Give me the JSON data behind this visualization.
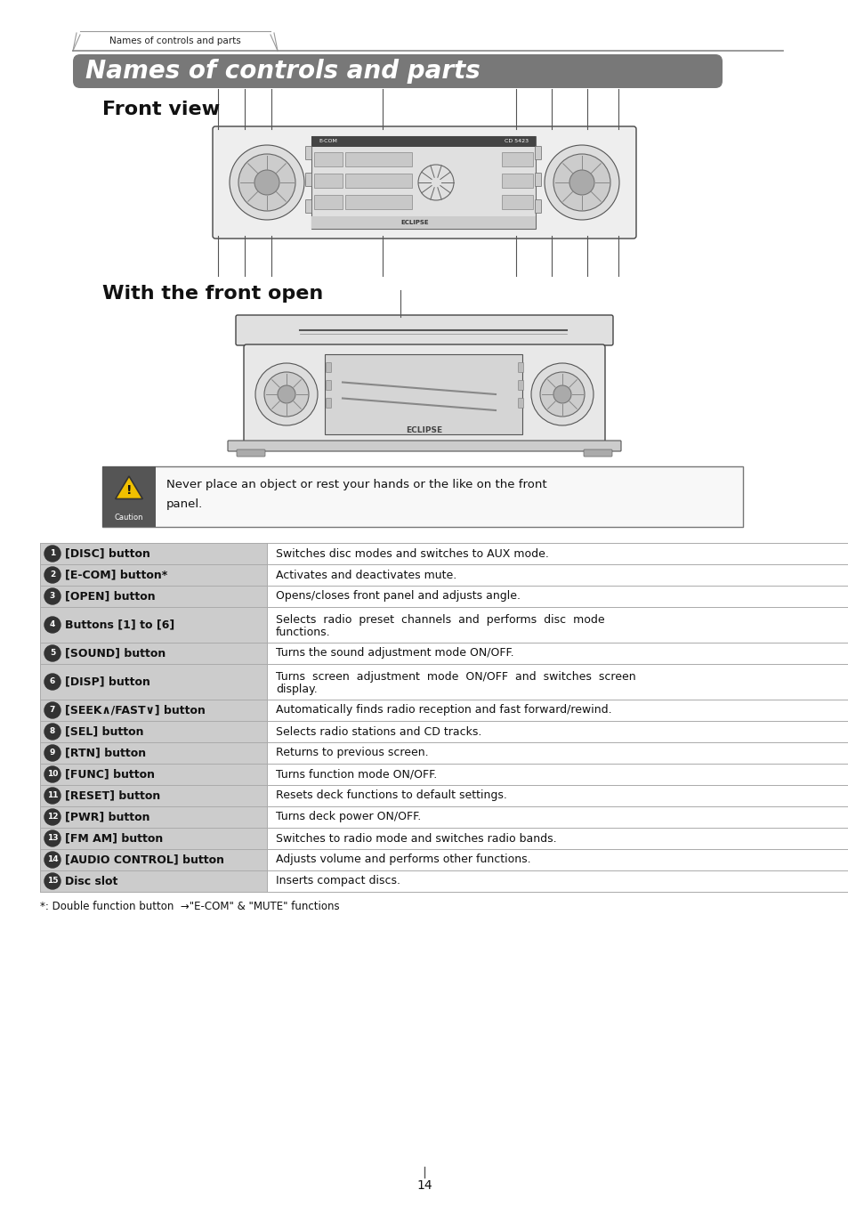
{
  "page_title": "Names of controls and parts",
  "tab_label": "Names of controls and parts",
  "section1": "Front view",
  "section2": "With the front open",
  "caution_text1": "Never place an object or rest your hands or the like on the front",
  "caution_text2": "panel.",
  "footnote": "*: Double function button  →\"E-COM\" & \"MUTE\" functions",
  "page_number": "14",
  "header_bg": "#787878",
  "header_text_color": "#ffffff",
  "table_rows": [
    {
      "num": "1",
      "label": "[DISC] button",
      "desc": "Switches disc modes and switches to AUX mode.",
      "two_line": false
    },
    {
      "num": "2",
      "label": "[E-COM] button*",
      "desc": "Activates and deactivates mute.",
      "two_line": false
    },
    {
      "num": "3",
      "label": "[OPEN] button",
      "desc": "Opens/closes front panel and adjusts angle.",
      "two_line": false
    },
    {
      "num": "4",
      "label": "Buttons [1] to [6]",
      "desc1": "Selects  radio  preset  channels  and  performs  disc  mode",
      "desc2": "functions.",
      "two_line": true
    },
    {
      "num": "5",
      "label": "[SOUND] button",
      "desc": "Turns the sound adjustment mode ON/OFF.",
      "two_line": false
    },
    {
      "num": "6",
      "label": "[DISP] button",
      "desc1": "Turns  screen  adjustment  mode  ON/OFF  and  switches  screen",
      "desc2": "display.",
      "two_line": true
    },
    {
      "num": "7",
      "label": "[SEEK∧/FAST∨] button",
      "desc": "Automatically finds radio reception and fast forward/rewind.",
      "two_line": false
    },
    {
      "num": "8",
      "label": "[SEL] button",
      "desc": "Selects radio stations and CD tracks.",
      "two_line": false
    },
    {
      "num": "9",
      "label": "[RTN] button",
      "desc": "Returns to previous screen.",
      "two_line": false
    },
    {
      "num": "10",
      "label": "[FUNC] button",
      "desc": "Turns function mode ON/OFF.",
      "two_line": false
    },
    {
      "num": "11",
      "label": "[RESET] button",
      "desc": "Resets deck functions to default settings.",
      "two_line": false
    },
    {
      "num": "12",
      "label": "[PWR] button",
      "desc": "Turns deck power ON/OFF.",
      "two_line": false
    },
    {
      "num": "13",
      "label": "[FM AM] button",
      "desc": "Switches to radio mode and switches radio bands.",
      "two_line": false
    },
    {
      "num": "14",
      "label": "[AUDIO CONTROL] button",
      "desc": "Adjusts volume and performs other functions.",
      "two_line": false
    },
    {
      "num": "15",
      "label": "Disc slot",
      "desc": "Inserts compact discs.",
      "two_line": false
    }
  ],
  "bg_color": "#ffffff",
  "table_border_color": "#aaaaaa",
  "label_col_shade": "#cccccc"
}
